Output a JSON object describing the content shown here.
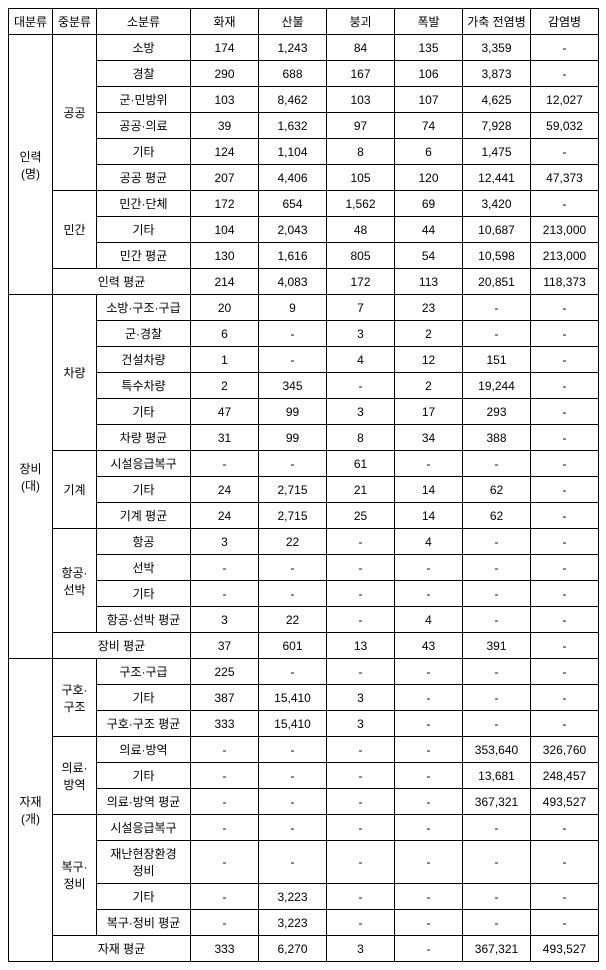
{
  "headers": [
    "대분류",
    "중분류",
    "소분류",
    "화재",
    "산불",
    "붕괴",
    "폭발",
    "가축\n전염병",
    "감염병"
  ],
  "l1": [
    {
      "label": "인력\n(명)",
      "rowspan": 9
    },
    {
      "label": "장비\n(대)",
      "rowspan": 13
    },
    {
      "label": "자재\n(개)",
      "rowspan": 11
    }
  ],
  "l2": [
    {
      "label": "공공",
      "rowspan": 6
    },
    {
      "label": "민간",
      "rowspan": 3
    },
    {
      "label": "차량",
      "rowspan": 6
    },
    {
      "label": "기계",
      "rowspan": 3
    },
    {
      "label": "항공·\n선박",
      "rowspan": 4
    },
    {
      "label": "구호·\n구조",
      "rowspan": 3
    },
    {
      "label": "의료·\n방역",
      "rowspan": 3
    },
    {
      "label": "복구·\n정비",
      "rowspan": 4
    }
  ],
  "avg": {
    "inryeok": {
      "label": "인력 평균",
      "vals": [
        "214",
        "4,083",
        "172",
        "113",
        "20,851",
        "118,373"
      ]
    },
    "jangbi": {
      "label": "장비 평균",
      "vals": [
        "37",
        "601",
        "13",
        "43",
        "391",
        "-"
      ]
    },
    "jajae": {
      "label": "자재 평균",
      "vals": [
        "333",
        "6,270",
        "3",
        "-",
        "367,321",
        "493,527"
      ]
    }
  },
  "rows": {
    "r1": {
      "label": "소방",
      "vals": [
        "174",
        "1,243",
        "84",
        "135",
        "3,359",
        "-"
      ]
    },
    "r2": {
      "label": "경찰",
      "vals": [
        "290",
        "688",
        "167",
        "106",
        "3,873",
        "-"
      ]
    },
    "r3": {
      "label": "군·민방위",
      "vals": [
        "103",
        "8,462",
        "103",
        "107",
        "4,625",
        "12,027"
      ]
    },
    "r4": {
      "label": "공공·의료",
      "vals": [
        "39",
        "1,632",
        "97",
        "74",
        "7,928",
        "59,032"
      ]
    },
    "r5": {
      "label": "기타",
      "vals": [
        "124",
        "1,104",
        "8",
        "6",
        "1,475",
        "-"
      ]
    },
    "r6": {
      "label": "공공 평균",
      "vals": [
        "207",
        "4,406",
        "105",
        "120",
        "12,441",
        "47,373"
      ]
    },
    "r7": {
      "label": "민간·단체",
      "vals": [
        "172",
        "654",
        "1,562",
        "69",
        "3,420",
        "-"
      ]
    },
    "r8": {
      "label": "기타",
      "vals": [
        "104",
        "2,043",
        "48",
        "44",
        "10,687",
        "213,000"
      ]
    },
    "r9": {
      "label": "민간 평균",
      "vals": [
        "130",
        "1,616",
        "805",
        "54",
        "10,598",
        "213,000"
      ]
    },
    "r10": {
      "label": "소방·구조·구급",
      "vals": [
        "20",
        "9",
        "7",
        "23",
        "-",
        "-"
      ]
    },
    "r11": {
      "label": "군·경찰",
      "vals": [
        "6",
        "-",
        "3",
        "2",
        "-",
        "-"
      ]
    },
    "r12": {
      "label": "건설차량",
      "vals": [
        "1",
        "-",
        "4",
        "12",
        "151",
        "-"
      ]
    },
    "r13": {
      "label": "특수차량",
      "vals": [
        "2",
        "345",
        "-",
        "2",
        "19,244",
        "-"
      ]
    },
    "r14": {
      "label": "기타",
      "vals": [
        "47",
        "99",
        "3",
        "17",
        "293",
        "-"
      ]
    },
    "r15": {
      "label": "차량 평균",
      "vals": [
        "31",
        "99",
        "8",
        "34",
        "388",
        "-"
      ]
    },
    "r16": {
      "label": "시설응급복구",
      "vals": [
        "-",
        "-",
        "61",
        "-",
        "-",
        "-"
      ]
    },
    "r17": {
      "label": "기타",
      "vals": [
        "24",
        "2,715",
        "21",
        "14",
        "62",
        "-"
      ]
    },
    "r18": {
      "label": "기계 평균",
      "vals": [
        "24",
        "2,715",
        "25",
        "14",
        "62",
        "-"
      ]
    },
    "r19": {
      "label": "항공",
      "vals": [
        "3",
        "22",
        "-",
        "4",
        "-",
        "-"
      ]
    },
    "r20": {
      "label": "선박",
      "vals": [
        "-",
        "-",
        "-",
        "-",
        "-",
        "-"
      ]
    },
    "r21": {
      "label": "기타",
      "vals": [
        "-",
        "-",
        "-",
        "-",
        "-",
        "-"
      ]
    },
    "r22": {
      "label": "항공·선박 평균",
      "vals": [
        "3",
        "22",
        "-",
        "4",
        "-",
        "-"
      ]
    },
    "r23": {
      "label": "구조·구급",
      "vals": [
        "225",
        "-",
        "-",
        "-",
        "-",
        "-"
      ]
    },
    "r24": {
      "label": "기타",
      "vals": [
        "387",
        "15,410",
        "3",
        "-",
        "-",
        "-"
      ]
    },
    "r25": {
      "label": "구호·구조 평균",
      "vals": [
        "333",
        "15,410",
        "3",
        "-",
        "-",
        "-"
      ]
    },
    "r26": {
      "label": "의료·방역",
      "vals": [
        "-",
        "-",
        "-",
        "-",
        "353,640",
        "326,760"
      ]
    },
    "r27": {
      "label": "기타",
      "vals": [
        "-",
        "-",
        "-",
        "-",
        "13,681",
        "248,457"
      ]
    },
    "r28": {
      "label": "의료·방역 평균",
      "vals": [
        "-",
        "-",
        "-",
        "-",
        "367,321",
        "493,527"
      ]
    },
    "r29": {
      "label": "시설응급복구",
      "vals": [
        "-",
        "-",
        "-",
        "-",
        "-",
        "-"
      ]
    },
    "r30": {
      "label": "재난현장환경\n정비",
      "vals": [
        "-",
        "-",
        "-",
        "-",
        "-",
        "-"
      ]
    },
    "r31": {
      "label": "기타",
      "vals": [
        "-",
        "3,223",
        "-",
        "-",
        "-",
        "-"
      ]
    },
    "r32": {
      "label": "복구·정비 평균",
      "vals": [
        "-",
        "3,223",
        "-",
        "-",
        "-",
        "-"
      ]
    }
  }
}
